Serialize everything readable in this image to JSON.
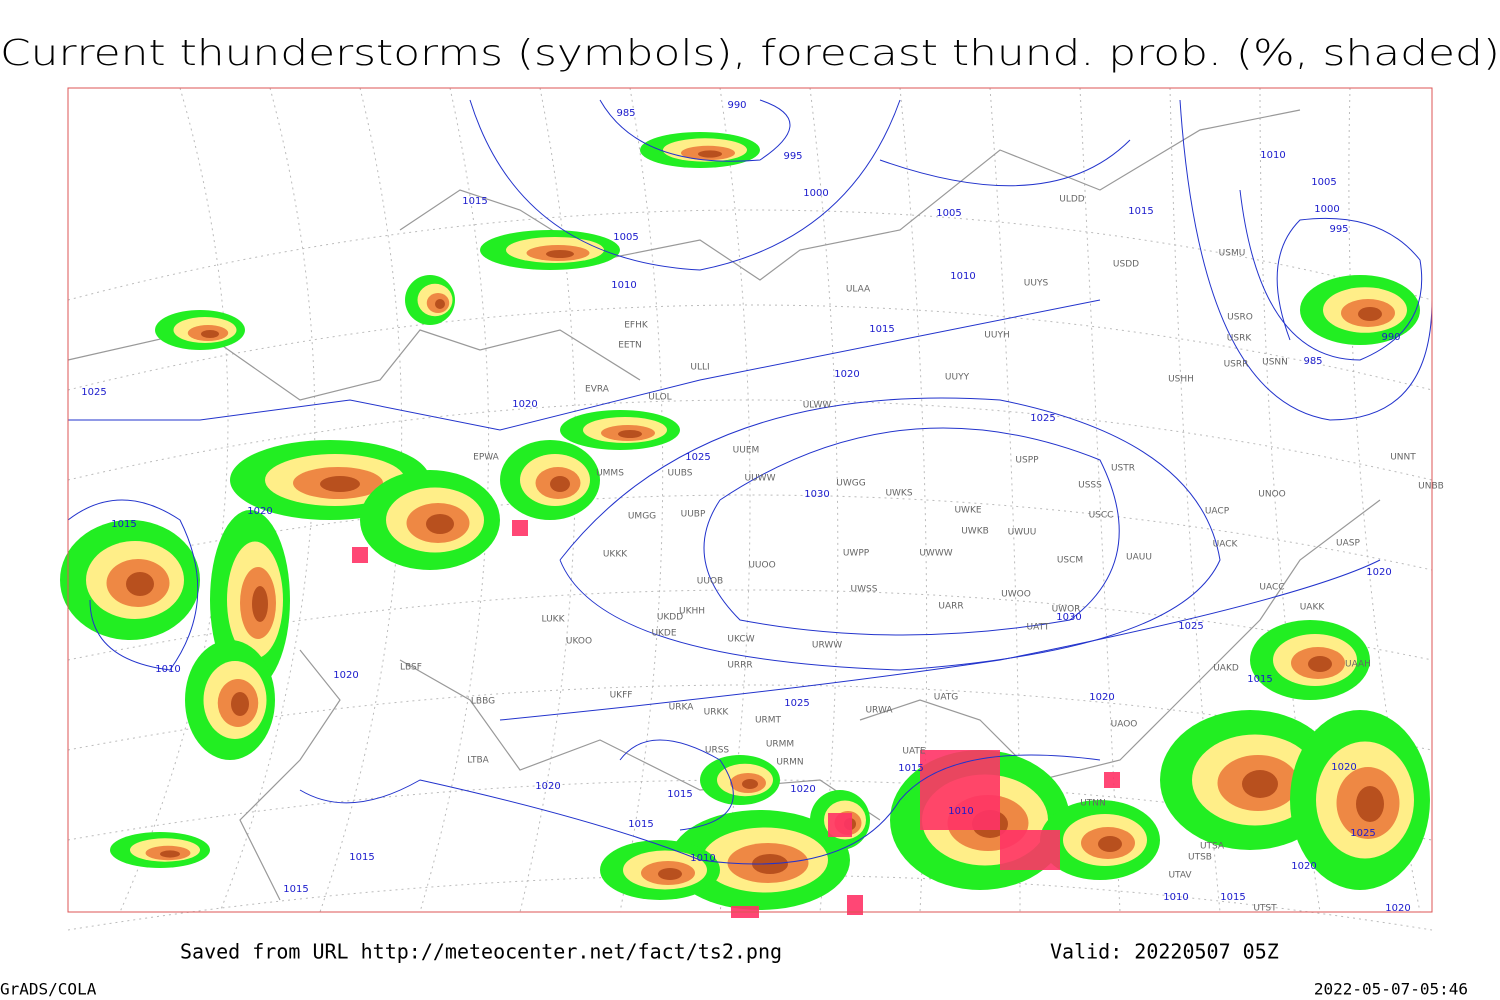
{
  "title": "Current thunderstorms (symbols), forecast thund. prob. (%, shaded)",
  "footer": {
    "source": "Saved from URL http://meteocenter.net/fact/ts2.png",
    "valid": "Valid: 20220507 05Z",
    "software": "GrADS/COLA",
    "timestamp": "2022-05-07-05:46"
  },
  "isobar_labels": [
    "985",
    "990",
    "995",
    "1000",
    "1005",
    "1015",
    "1010",
    "1005",
    "1010",
    "1015",
    "1015",
    "1010",
    "1005",
    "1000",
    "995",
    "990",
    "985",
    "1020",
    "1025",
    "1020",
    "1025",
    "1025",
    "1030",
    "1030",
    "1020",
    "1015",
    "1010",
    "1020",
    "1025",
    "1020",
    "1025",
    "1020",
    "1015",
    "1020",
    "1020",
    "1015",
    "1020",
    "1015",
    "1010",
    "1015",
    "1015",
    "1010",
    "1015",
    "1025",
    "1020",
    "1010",
    "1015",
    "1020"
  ],
  "stations": [
    "ULDD",
    "USDD",
    "UUYS",
    "ULAA",
    "EFHK",
    "EETN",
    "ULLI",
    "UUYH",
    "UUYY",
    "USMU",
    "USRO",
    "USRK",
    "USRR",
    "USNN",
    "USHH",
    "EVRA",
    "ULOL",
    "ULWW",
    "EPWA",
    "UMMS",
    "UUBS",
    "UUEM",
    "UUWW",
    "UWGG",
    "UWKS",
    "USPP",
    "USTR",
    "USSS",
    "UNOO",
    "UNNT",
    "UNBB",
    "UMGG",
    "UUBP",
    "UWKE",
    "UWKB",
    "UWUU",
    "USCC",
    "UACP",
    "UACK",
    "UASP",
    "UWPP",
    "UWWW",
    "USCM",
    "UAUU",
    "UKKK",
    "UUOO",
    "UUOB",
    "UWSS",
    "UACC",
    "UARR",
    "UWOO",
    "UWOR",
    "UATT",
    "UAKK",
    "LUKK",
    "UKDD",
    "UKHH",
    "UKDE",
    "UKOO",
    "UKCW",
    "URWW",
    "URRR",
    "LBSF",
    "UAKD",
    "UAAH",
    "UKFF",
    "URKA",
    "URKK",
    "URMT",
    "URWA",
    "UATG",
    "UAOO",
    "LBBG",
    "URSS",
    "URMM",
    "URMN",
    "UATE",
    "LTBA",
    "UTNN",
    "UTSA",
    "UTSB",
    "UTAV",
    "UTST"
  ]
}
